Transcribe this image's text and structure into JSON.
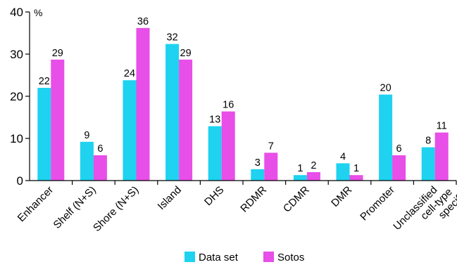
{
  "chart_data": {
    "type": "bar",
    "ylabel": "%",
    "ylim": [
      0,
      40
    ],
    "yticks": [
      0,
      10,
      20,
      30,
      40
    ],
    "categories": [
      "Enhancer",
      "Shelf (N+S)",
      "Shore (N+S)",
      "Island",
      "DHS",
      "RDMR",
      "CDMR",
      "DMR",
      "Promoter",
      "Unclassified cell-type specific"
    ],
    "series": [
      {
        "name": "Data set",
        "color": "#1ED2F0",
        "values": [
          22,
          9,
          24,
          32,
          13,
          3,
          1,
          4,
          20,
          8
        ],
        "plot_values": [
          22,
          9.2,
          23.8,
          32.4,
          12.9,
          2.7,
          1.3,
          4.1,
          20.4,
          7.9
        ]
      },
      {
        "name": "Sotos",
        "color": "#E84EE8",
        "values": [
          29,
          6,
          36,
          29,
          16,
          7,
          2,
          1,
          6,
          11
        ],
        "plot_values": [
          28.7,
          6.0,
          36.2,
          28.7,
          16.4,
          6.6,
          2.0,
          1.3,
          6.0,
          11.4
        ]
      }
    ],
    "legend_position": "bottom-center",
    "grid": false
  }
}
